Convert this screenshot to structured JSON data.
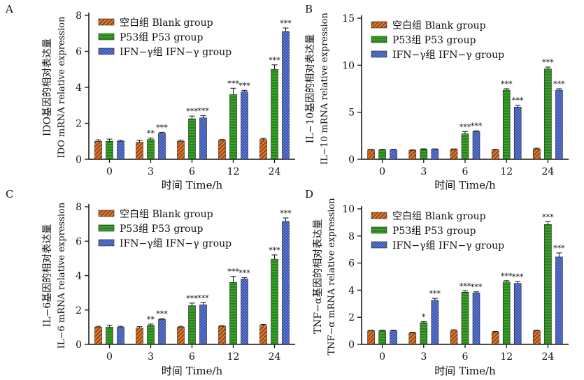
{
  "colors": {
    "blank_fill": "#e07a2e",
    "p53_fill": "#3aa32a",
    "ifn_fill": "#3a4fb0",
    "axis": "#111111"
  },
  "chart_data": [
    {
      "panel": "A",
      "type": "bar",
      "categories": [
        "0",
        "3",
        "6",
        "12",
        "24"
      ],
      "xlabel": "时间 Time/h",
      "ylabel_zh": "IDO基因的相对表达量",
      "ylabel_en": "IDO mRNA relative expression",
      "ylim": [
        0,
        8
      ],
      "yticks": [
        0,
        2,
        4,
        6,
        8
      ],
      "legend_position": "top-left",
      "series": [
        {
          "name": "空白组 Blank group",
          "pattern": "blank",
          "values": [
            1.0,
            0.95,
            1.0,
            1.05,
            1.1
          ],
          "errors": [
            0.08,
            0.1,
            0.06,
            0.05,
            0.06
          ],
          "sig": [
            "",
            "",
            "",
            "",
            ""
          ]
        },
        {
          "name": "P53组 P53 group",
          "pattern": "p53",
          "values": [
            1.0,
            1.1,
            2.25,
            3.6,
            5.0
          ],
          "errors": [
            0.12,
            0.08,
            0.15,
            0.35,
            0.25
          ],
          "sig": [
            "",
            "**",
            "***",
            "***",
            "***"
          ]
        },
        {
          "name": "IFN−γ组 IFN−γ group",
          "pattern": "ifn",
          "values": [
            1.0,
            1.45,
            2.3,
            3.75,
            7.1
          ],
          "errors": [
            0.05,
            0.05,
            0.12,
            0.08,
            0.2
          ],
          "sig": [
            "",
            "***",
            "***",
            "***",
            "***"
          ]
        }
      ]
    },
    {
      "panel": "B",
      "type": "bar",
      "categories": [
        "0",
        "3",
        "6",
        "12",
        "24"
      ],
      "xlabel": "时间 Time/h",
      "ylabel_zh": "IL−10基因的相对表达量",
      "ylabel_en": "IL−10 mRNA relative expression",
      "ylim": [
        0,
        15
      ],
      "yticks": [
        0,
        5,
        10,
        15
      ],
      "legend_position": "top-left",
      "series": [
        {
          "name": "空白组 Blank group",
          "pattern": "blank",
          "values": [
            1.0,
            0.95,
            1.05,
            1.0,
            1.1
          ],
          "errors": [
            0.05,
            0.05,
            0.05,
            0.05,
            0.08
          ],
          "sig": [
            "",
            "",
            "",
            "",
            ""
          ]
        },
        {
          "name": "P53组 P53 group",
          "pattern": "p53",
          "values": [
            1.0,
            1.05,
            2.7,
            7.35,
            9.6
          ],
          "errors": [
            0.05,
            0.06,
            0.25,
            0.15,
            0.2
          ],
          "sig": [
            "",
            "",
            "***",
            "***",
            "***"
          ]
        },
        {
          "name": "IFN−γ组 IFN−γ group",
          "pattern": "ifn",
          "values": [
            1.0,
            1.05,
            2.95,
            5.55,
            7.35
          ],
          "errors": [
            0.05,
            0.05,
            0.08,
            0.2,
            0.15
          ],
          "sig": [
            "",
            "",
            "***",
            "***",
            "***"
          ]
        }
      ]
    },
    {
      "panel": "C",
      "type": "bar",
      "categories": [
        "0",
        "3",
        "6",
        "12",
        "24"
      ],
      "xlabel": "时间 Time/h",
      "ylabel_zh": "IL−6基因的相对表达量",
      "ylabel_en": "IL−6 mRNA relative expression",
      "ylim": [
        0,
        8
      ],
      "yticks": [
        0,
        2,
        4,
        6,
        8
      ],
      "legend_position": "top-left",
      "series": [
        {
          "name": "空白组 Blank group",
          "pattern": "blank",
          "values": [
            1.0,
            0.95,
            1.0,
            1.05,
            1.1
          ],
          "errors": [
            0.05,
            0.08,
            0.05,
            0.05,
            0.06
          ],
          "sig": [
            "",
            "",
            "",
            "",
            ""
          ]
        },
        {
          "name": "P53组 P53 group",
          "pattern": "p53",
          "values": [
            1.0,
            1.1,
            2.25,
            3.6,
            4.95
          ],
          "errors": [
            0.12,
            0.08,
            0.15,
            0.35,
            0.25
          ],
          "sig": [
            "",
            "**",
            "***",
            "***",
            "***"
          ]
        },
        {
          "name": "IFN−γ组 IFN−γ group",
          "pattern": "ifn",
          "values": [
            1.0,
            1.45,
            2.3,
            3.8,
            7.15
          ],
          "errors": [
            0.05,
            0.05,
            0.12,
            0.08,
            0.2
          ],
          "sig": [
            "",
            "***",
            "***",
            "***",
            "***"
          ]
        }
      ]
    },
    {
      "panel": "D",
      "type": "bar",
      "categories": [
        "0",
        "3",
        "6",
        "12",
        "24"
      ],
      "xlabel": "时间 Time/h",
      "ylabel_zh": "TNF−α基因的相对表达量",
      "ylabel_en": "TNF−α mRNA relative expression",
      "ylim": [
        0,
        10
      ],
      "yticks": [
        0,
        2,
        4,
        6,
        8,
        10
      ],
      "legend_position": "top-left",
      "series": [
        {
          "name": "空白组 Blank group",
          "pattern": "blank",
          "values": [
            1.0,
            0.85,
            1.0,
            0.9,
            1.0
          ],
          "errors": [
            0.05,
            0.05,
            0.08,
            0.05,
            0.05
          ],
          "sig": [
            "",
            "",
            "",
            "",
            ""
          ]
        },
        {
          "name": "P53组 P53 group",
          "pattern": "p53",
          "values": [
            1.0,
            1.6,
            3.85,
            4.6,
            8.85
          ],
          "errors": [
            0.05,
            0.08,
            0.1,
            0.1,
            0.2
          ],
          "sig": [
            "",
            "*",
            "***",
            "***",
            "***"
          ]
        },
        {
          "name": "IFN−γ组 IFN−γ group",
          "pattern": "ifn",
          "values": [
            1.0,
            3.25,
            3.8,
            4.5,
            6.45
          ],
          "errors": [
            0.05,
            0.15,
            0.08,
            0.15,
            0.3
          ],
          "sig": [
            "",
            "***",
            "***",
            "***",
            "***"
          ]
        }
      ]
    }
  ]
}
